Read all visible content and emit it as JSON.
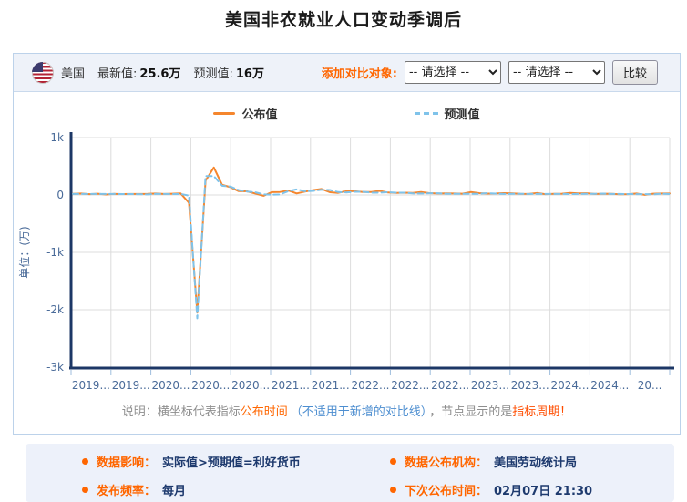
{
  "page_title": "美国非农就业人口变动季调后",
  "header": {
    "country": "美国",
    "latest_label": "最新值:",
    "latest_value": "25.6万",
    "forecast_label": "预测值:",
    "forecast_value": "16万",
    "compare_label": "添加对比对象:",
    "select_placeholder": "-- 请选择 --",
    "select2_placeholder": "-- 请选择 --",
    "compare_button": "比较"
  },
  "legend": {
    "published": "公布值",
    "forecast": "预测值"
  },
  "note": {
    "prefix": "说明：横坐标代表指标",
    "highlight1": "公布时间",
    "paren": "（不适用于新增的对比线）",
    "middle": "，节点显示的是",
    "highlight2": "指标周期！"
  },
  "footer": {
    "items": [
      {
        "label": "数据影响：",
        "value": "实际值>预期值=利好货币"
      },
      {
        "label": "数据公布机构：",
        "value": "美国劳动统计局"
      },
      {
        "label": "发布频率：",
        "value": "每月"
      },
      {
        "label": "下次公布时间：",
        "value": "02月07日 21:30"
      }
    ]
  },
  "colors": {
    "accent_orange": "#ff6600",
    "line_orange": "#f5862d",
    "line_blue": "#7fc3ea",
    "axis_navy": "#1c3766",
    "tick_text": "#4a6b99",
    "grid": "#dcdcdc",
    "panel_bg": "#eef2f9",
    "footer_bg": "#edf1fa",
    "value_navy": "#1e3a6e"
  },
  "chart_data": {
    "type": "line",
    "title": "美国非农就业人口变动季调后",
    "xlabel": "",
    "ylabel": "单位：(万)",
    "unit": "万 (10k persons)",
    "ylim": [
      -3000,
      1000
    ],
    "yticks": [
      "1k",
      "0",
      "-1k",
      "-2k",
      "-3k"
    ],
    "ytick_values": [
      1000,
      0,
      -1000,
      -2000,
      -3000
    ],
    "x_labels": [
      "2019...",
      "2019...",
      "2020...",
      "2020...",
      "2020...",
      "2021...",
      "2021...",
      "2022...",
      "2022...",
      "2022...",
      "2023...",
      "2023...",
      "2024...",
      "2024...",
      "20..."
    ],
    "x_range_note": "monthly points, Jan 2019 - Jan 2025 (x axis = publication time)",
    "grid": true,
    "legend_position": "top-center",
    "series": [
      {
        "name": "公布值",
        "color": "#f5862d",
        "style": "solid",
        "values": [
          20,
          25,
          15,
          22,
          8,
          19,
          16,
          17,
          18,
          19,
          26,
          18,
          22,
          27,
          -137,
          -2050,
          250,
          480,
          176,
          137,
          66,
          64,
          26,
          -14,
          49,
          53,
          78,
          27,
          58,
          85,
          105,
          48,
          36,
          67,
          65,
          51,
          50,
          71,
          43,
          37,
          39,
          37,
          53,
          32,
          26,
          28,
          26,
          22,
          51,
          31,
          24,
          25,
          31,
          28,
          19,
          18,
          34,
          15,
          20,
          22,
          35,
          28,
          30,
          17,
          22,
          21,
          11,
          14,
          25,
          1,
          23,
          26,
          25.6
        ]
      },
      {
        "name": "预测值",
        "color": "#7fc3ea",
        "style": "dashed",
        "values": [
          18,
          17,
          18,
          18,
          18,
          17,
          16,
          16,
          15,
          9,
          19,
          18,
          16,
          16,
          -10,
          -2150,
          330,
          330,
          160,
          148,
          85,
          60,
          48,
          10,
          5,
          10,
          66,
          98,
          65,
          72,
          90,
          87,
          50,
          45,
          55,
          55,
          40,
          40,
          49,
          39,
          39,
          27,
          25,
          30,
          30,
          20,
          20,
          20,
          20,
          20,
          31,
          24,
          18,
          19,
          20,
          17,
          17,
          18,
          18,
          17,
          16,
          18,
          20,
          21,
          24,
          18,
          18,
          16,
          14,
          14,
          11,
          20,
          16
        ]
      }
    ]
  }
}
